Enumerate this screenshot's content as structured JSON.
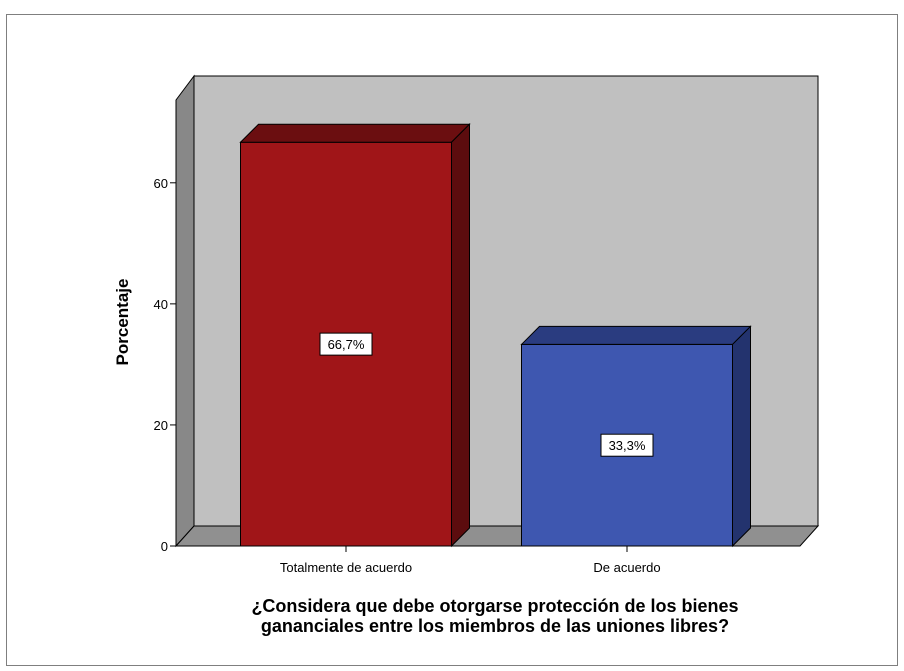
{
  "chart_data": {
    "type": "bar",
    "categories": [
      "Totalmente de acuerdo",
      "De acuerdo"
    ],
    "values": [
      66.7,
      33.3
    ],
    "data_labels": [
      "66,7%",
      "33,3%"
    ],
    "xlabel_lines": [
      "¿Considera que debe otorgarse protección de los bienes",
      "gananciales entre los miembros de las uniones libres?"
    ],
    "ylabel": "Porcentaje",
    "ylim": [
      0,
      75
    ],
    "yticks": [
      0,
      20,
      40,
      60
    ],
    "three_d": true,
    "grid": false,
    "colors": {
      "bars": [
        "#a01518",
        "#3e57b0"
      ],
      "bar_tops": [
        "#6b0e10",
        "#2a3c80"
      ],
      "bar_sides": [
        "#5c0c0e",
        "#23336e"
      ],
      "back_wall": "#c0c0c0",
      "side_wall": "#888888",
      "floor": "#909090",
      "frame": "#7f7f7f"
    }
  }
}
